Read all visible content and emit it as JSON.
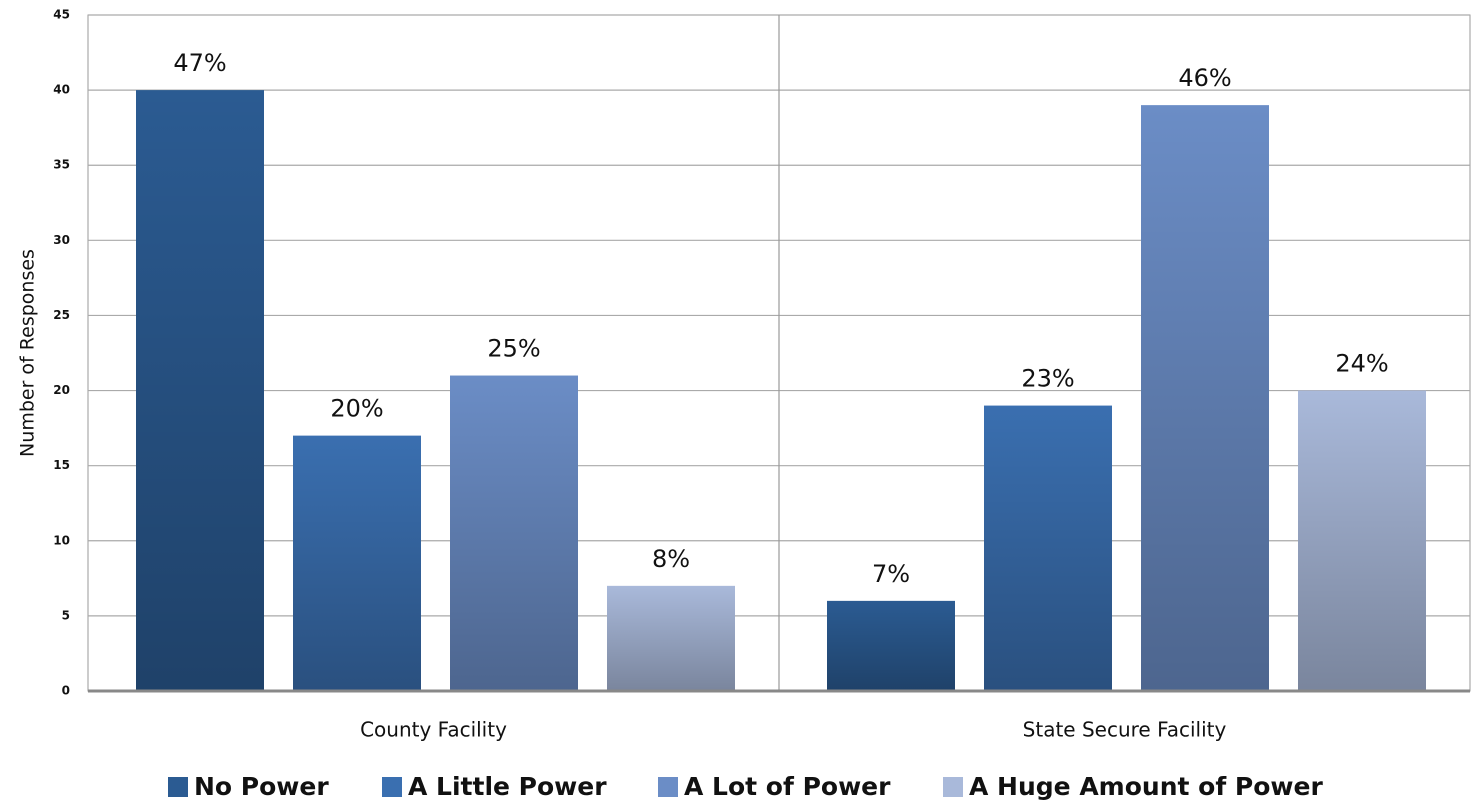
{
  "chart_data": {
    "type": "bar",
    "y_label": "Number of Responses",
    "categories": [
      "County Facility",
      "State Secure Facility"
    ],
    "series": [
      {
        "name": "No Power",
        "color": "#2b5b92",
        "values": [
          40,
          6
        ],
        "data_labels": [
          "47%",
          "7%"
        ]
      },
      {
        "name": "A Little Power",
        "color": "#3a6fb0",
        "values": [
          17,
          19
        ],
        "data_labels": [
          "20%",
          "23%"
        ]
      },
      {
        "name": "A Lot of Power",
        "color": "#6b8dc6",
        "values": [
          21,
          39
        ],
        "data_labels": [
          "25%",
          "46%"
        ]
      },
      {
        "name": "A Huge Amount of Power",
        "color": "#a9b9da",
        "values": [
          7,
          20
        ],
        "data_labels": [
          "8%",
          "24%"
        ]
      }
    ],
    "ylim": [
      0,
      45
    ],
    "yticks": [
      0,
      5,
      10,
      15,
      20,
      25,
      30,
      35,
      40,
      45
    ],
    "grid": true,
    "legend": "bottom"
  }
}
